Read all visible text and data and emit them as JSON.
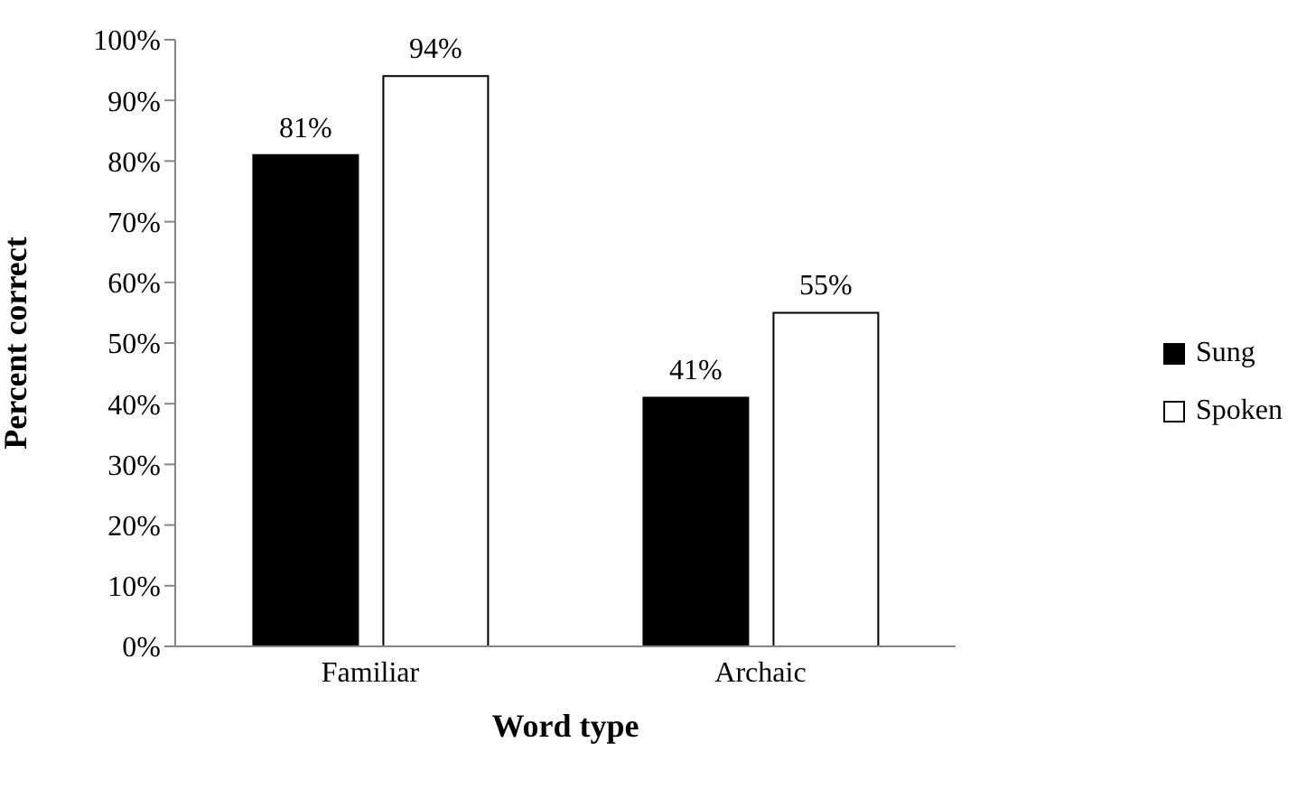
{
  "chart_data": {
    "type": "bar",
    "xlabel": "Word type",
    "ylabel": "Percent correct",
    "categories": [
      "Familiar",
      "Archaic"
    ],
    "series": [
      {
        "name": "Sung",
        "color": "#000000",
        "values": [
          81,
          41
        ],
        "value_labels": [
          "81%",
          "41%"
        ]
      },
      {
        "name": "Spoken",
        "color": "#ffffff",
        "values": [
          94,
          55
        ],
        "value_labels": [
          "94%",
          "55%"
        ]
      }
    ],
    "ylim": [
      0,
      100
    ],
    "yticks": [
      {
        "value": 0,
        "label": "0%"
      },
      {
        "value": 10,
        "label": "10%"
      },
      {
        "value": 20,
        "label": "20%"
      },
      {
        "value": 30,
        "label": "30%"
      },
      {
        "value": 40,
        "label": "40%"
      },
      {
        "value": 50,
        "label": "50%"
      },
      {
        "value": 60,
        "label": "60%"
      },
      {
        "value": 70,
        "label": "70%"
      },
      {
        "value": 80,
        "label": "80%"
      },
      {
        "value": 90,
        "label": "90%"
      },
      {
        "value": 100,
        "label": "100%"
      }
    ],
    "grid": false,
    "legend": "right"
  }
}
